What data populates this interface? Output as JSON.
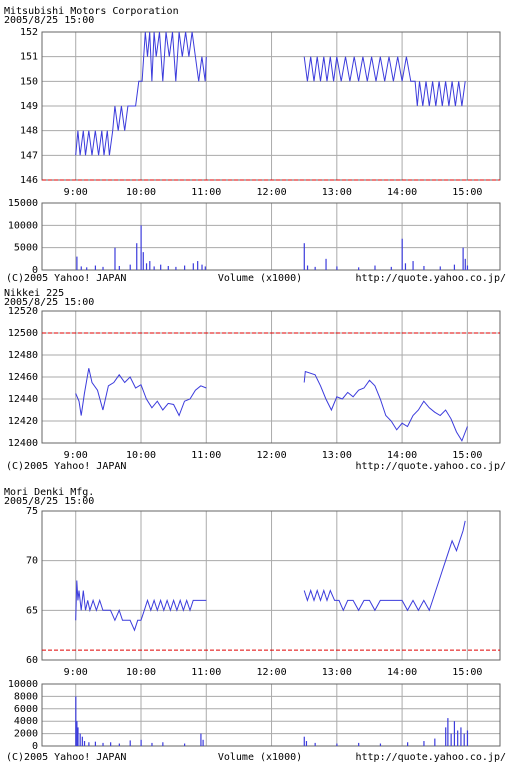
{
  "chart_data": [
    {
      "type": "line",
      "title": "Mitsubishi Motors Corporation",
      "subtitle": "2005/8/25 15:00",
      "color": "#3c3cdc",
      "ref_line": 146,
      "ref_color": "#e00000",
      "xlim": [
        509,
        930
      ],
      "xticks": [
        {
          "value": 540,
          "label": "9:00"
        },
        {
          "value": 600,
          "label": "10:00"
        },
        {
          "value": 660,
          "label": "11:00"
        },
        {
          "value": 720,
          "label": "12:00"
        },
        {
          "value": 780,
          "label": "13:00"
        },
        {
          "value": 840,
          "label": "14:00"
        },
        {
          "value": 900,
          "label": "15:00"
        }
      ],
      "ylim": [
        146,
        152
      ],
      "yticks": [
        146,
        147,
        148,
        149,
        150,
        151,
        152
      ],
      "x": [
        540,
        542,
        544,
        547,
        549,
        552,
        555,
        558,
        561,
        564,
        566,
        569,
        571,
        574,
        576,
        579,
        582,
        585,
        588,
        592,
        595,
        598,
        601,
        604,
        606,
        608,
        610,
        612,
        614,
        617,
        620,
        623,
        626,
        629,
        632,
        635,
        638,
        641,
        644,
        647,
        650,
        653,
        656,
        659,
        660,
        700,
        750,
        753,
        756,
        759,
        762,
        765,
        768,
        771,
        774,
        777,
        780,
        784,
        788,
        792,
        796,
        800,
        804,
        808,
        812,
        816,
        820,
        824,
        828,
        832,
        836,
        840,
        844,
        848,
        852,
        854,
        856,
        859,
        862,
        865,
        868,
        871,
        874,
        877,
        880,
        883,
        886,
        889,
        892,
        895,
        898
      ],
      "values": [
        147,
        148,
        147,
        148,
        147,
        148,
        147,
        148,
        147,
        148,
        147,
        148,
        147,
        148,
        149,
        148,
        149,
        148,
        149,
        149,
        149,
        150,
        150,
        152,
        151,
        152,
        150,
        152,
        151,
        152,
        150,
        152,
        151,
        152,
        150,
        152,
        151,
        152,
        151,
        152,
        151,
        150,
        151,
        150,
        151,
        null,
        151,
        150,
        151,
        150,
        151,
        150,
        151,
        150,
        151,
        150,
        151,
        150,
        151,
        150,
        151,
        150,
        151,
        150,
        151,
        150,
        151,
        150,
        151,
        150,
        151,
        150,
        151,
        150,
        150,
        149,
        150,
        149,
        150,
        149,
        150,
        149,
        150,
        149,
        150,
        149,
        150,
        149,
        150,
        149,
        150
      ],
      "volume": {
        "type": "bar",
        "ylim": [
          0,
          15000
        ],
        "yticks": [
          0,
          5000,
          10000,
          15000
        ],
        "x": [
          541,
          545,
          550,
          558,
          565,
          576,
          580,
          590,
          596,
          600,
          602,
          605,
          608,
          612,
          618,
          625,
          632,
          640,
          648,
          652,
          656,
          659,
          750,
          753,
          760,
          770,
          780,
          800,
          815,
          830,
          840,
          843,
          850,
          860,
          875,
          888,
          896,
          898,
          900
        ],
        "values": [
          3000,
          800,
          600,
          1000,
          700,
          5000,
          900,
          1200,
          6000,
          10000,
          4000,
          1500,
          2000,
          800,
          1200,
          900,
          700,
          1000,
          1500,
          2000,
          1200,
          800,
          6000,
          1000,
          700,
          2500,
          800,
          600,
          1000,
          700,
          7000,
          1500,
          2000,
          900,
          800,
          1200,
          5000,
          2500,
          1000
        ]
      },
      "footer": {
        "copyright": "(C)2005 Yahoo! JAPAN",
        "volume_label": "Volume (x1000)",
        "url": "http://quote.yahoo.co.jp/"
      }
    },
    {
      "type": "line",
      "title": "Nikkei 225",
      "subtitle": "2005/8/25 15:00",
      "color": "#3c3cdc",
      "ref_line": 12500,
      "ref_color": "#e00000",
      "xlim": [
        509,
        930
      ],
      "xticks": [
        {
          "value": 540,
          "label": "9:00"
        },
        {
          "value": 600,
          "label": "10:00"
        },
        {
          "value": 660,
          "label": "11:00"
        },
        {
          "value": 720,
          "label": "12:00"
        },
        {
          "value": 780,
          "label": "13:00"
        },
        {
          "value": 840,
          "label": "14:00"
        },
        {
          "value": 900,
          "label": "15:00"
        }
      ],
      "ylim": [
        12400,
        12520
      ],
      "yticks": [
        12400,
        12420,
        12440,
        12460,
        12480,
        12500,
        12520
      ],
      "x": [
        540,
        543,
        545,
        548,
        552,
        555,
        560,
        565,
        570,
        575,
        580,
        585,
        590,
        595,
        600,
        605,
        610,
        615,
        620,
        625,
        630,
        635,
        640,
        645,
        650,
        655,
        660,
        700,
        750,
        751,
        760,
        765,
        770,
        775,
        780,
        785,
        790,
        795,
        800,
        805,
        810,
        815,
        820,
        825,
        830,
        835,
        840,
        845,
        850,
        855,
        860,
        865,
        870,
        875,
        880,
        885,
        890,
        895,
        900
      ],
      "values": [
        12445,
        12438,
        12425,
        12445,
        12468,
        12455,
        12448,
        12430,
        12452,
        12455,
        12462,
        12455,
        12460,
        12450,
        12453,
        12440,
        12432,
        12438,
        12430,
        12436,
        12435,
        12425,
        12438,
        12440,
        12448,
        12452,
        12450,
        null,
        12455,
        12465,
        12462,
        12452,
        12440,
        12430,
        12442,
        12440,
        12446,
        12442,
        12448,
        12450,
        12457,
        12452,
        12440,
        12425,
        12420,
        12412,
        12418,
        12415,
        12425,
        12430,
        12438,
        12432,
        12428,
        12425,
        12430,
        12422,
        12410,
        12402,
        12415
      ],
      "footer": {
        "copyright": "(C)2005 Yahoo! JAPAN",
        "url": "http://quote.yahoo.co.jp/"
      }
    },
    {
      "type": "line",
      "title": "Mori Denki Mfg.",
      "subtitle": "2005/8/25 15:00",
      "color": "#3c3cdc",
      "ref_line": 61,
      "ref_color": "#e00000",
      "xlim": [
        509,
        930
      ],
      "xticks": [
        {
          "value": 540,
          "label": "9:00"
        },
        {
          "value": 600,
          "label": "10:00"
        },
        {
          "value": 660,
          "label": "11:00"
        },
        {
          "value": 720,
          "label": "12:00"
        },
        {
          "value": 780,
          "label": "13:00"
        },
        {
          "value": 840,
          "label": "14:00"
        },
        {
          "value": 900,
          "label": "15:00"
        }
      ],
      "ylim": [
        60,
        75
      ],
      "yticks": [
        60,
        65,
        70,
        75
      ],
      "x": [
        540,
        541,
        542,
        543,
        545,
        547,
        549,
        551,
        553,
        556,
        559,
        562,
        565,
        568,
        572,
        576,
        580,
        583,
        586,
        590,
        594,
        597,
        600,
        603,
        606,
        609,
        612,
        615,
        618,
        621,
        624,
        627,
        630,
        633,
        636,
        639,
        642,
        645,
        648,
        651,
        655,
        660,
        700,
        750,
        753,
        756,
        759,
        762,
        765,
        768,
        771,
        774,
        778,
        782,
        786,
        790,
        795,
        800,
        805,
        810,
        815,
        820,
        830,
        840,
        845,
        850,
        855,
        860,
        865,
        868,
        871,
        874,
        877,
        880,
        883,
        886,
        890,
        893,
        896,
        898
      ],
      "values": [
        64,
        68,
        66,
        67,
        65,
        67,
        65,
        66,
        65,
        66,
        65,
        66,
        65,
        65,
        65,
        64,
        65,
        64,
        64,
        64,
        63,
        64,
        64,
        65,
        66,
        65,
        66,
        65,
        66,
        65,
        66,
        65,
        66,
        65,
        66,
        65,
        66,
        65,
        66,
        66,
        66,
        66,
        null,
        67,
        66,
        67,
        66,
        67,
        66,
        67,
        66,
        67,
        66,
        66,
        65,
        66,
        66,
        65,
        66,
        66,
        65,
        66,
        66,
        66,
        65,
        66,
        65,
        66,
        65,
        66,
        67,
        68,
        69,
        70,
        71,
        72,
        71,
        72,
        73,
        74
      ],
      "volume": {
        "type": "bar",
        "ylim": [
          0,
          10000
        ],
        "yticks": [
          0,
          2000,
          4000,
          6000,
          8000,
          10000
        ],
        "x": [
          540,
          541,
          542,
          544,
          546,
          548,
          552,
          558,
          565,
          572,
          580,
          590,
          600,
          610,
          620,
          640,
          655,
          657,
          750,
          752,
          760,
          780,
          800,
          820,
          845,
          860,
          870,
          880,
          882,
          885,
          888,
          891,
          894,
          897,
          900
        ],
        "values": [
          8000,
          4000,
          3000,
          2000,
          1500,
          800,
          600,
          700,
          500,
          600,
          400,
          900,
          1000,
          500,
          600,
          400,
          2000,
          1000,
          1500,
          800,
          500,
          400,
          500,
          400,
          600,
          800,
          1200,
          3000,
          4500,
          2000,
          4000,
          2500,
          3000,
          2000,
          2500
        ]
      },
      "footer": {
        "copyright": "(C)2005 Yahoo! JAPAN",
        "volume_label": "Volume (x1000)",
        "url": "http://quote.yahoo.co.jp/"
      }
    }
  ]
}
